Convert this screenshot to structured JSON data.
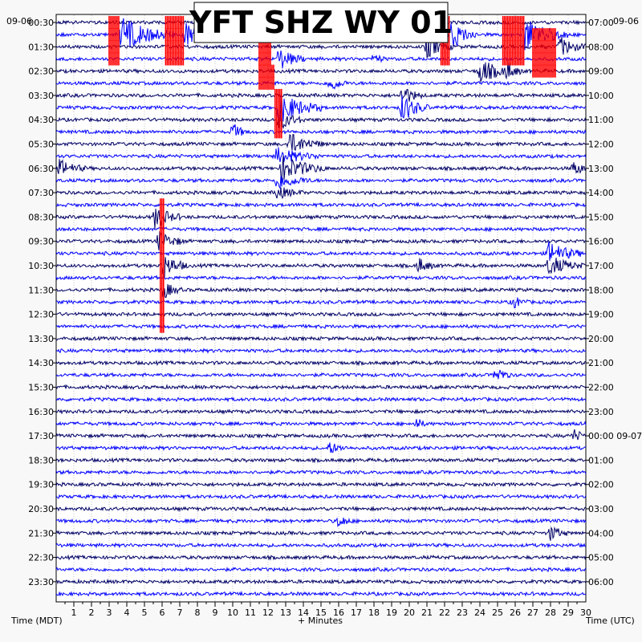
{
  "chart_data": {
    "type": "line",
    "title": "YFT SHZ WY 01",
    "left_date": "09-06",
    "right_date": "09-06",
    "left_axis_label": "Time (MDT)",
    "right_axis_label": "Time (UTC)",
    "xlabel": "+ Minutes",
    "x_ticks": [
      1,
      2,
      3,
      4,
      5,
      6,
      7,
      8,
      9,
      10,
      11,
      12,
      13,
      14,
      15,
      16,
      17,
      18,
      19,
      20,
      21,
      22,
      23,
      24,
      25,
      26,
      27,
      28,
      29,
      30
    ],
    "xlim": [
      0,
      30
    ],
    "left_ticks": [
      "00:30",
      "01:30",
      "02:30",
      "03:30",
      "04:30",
      "05:30",
      "06:30",
      "07:30",
      "08:30",
      "09:30",
      "10:30",
      "11:30",
      "12:30",
      "13:30",
      "14:30",
      "15:30",
      "16:30",
      "17:30",
      "18:30",
      "19:30",
      "20:30",
      "21:30",
      "22:30",
      "23:30"
    ],
    "right_ticks": [
      "07:00",
      "08:00",
      "09:00",
      "10:00",
      "11:00",
      "12:00",
      "13:00",
      "14:00",
      "15:00",
      "16:00",
      "17:00",
      "18:00",
      "19:00",
      "20:00",
      "21:00",
      "22:00",
      "23:00",
      "00:00 09-07",
      "01:00",
      "02:00",
      "03:00",
      "04:00",
      "05:00",
      "06:00"
    ],
    "trace_colors": [
      "#000066",
      "#0000ff"
    ],
    "clip_color": "#ff0000",
    "trace_count": 48,
    "traces_per_hour": 2,
    "clipped_segments": [
      {
        "trace": 0,
        "x": [
          3.0,
          3.6
        ]
      },
      {
        "trace": 1,
        "x": [
          3.0,
          3.6
        ]
      },
      {
        "trace": 2,
        "x": [
          3.0,
          3.6
        ]
      },
      {
        "trace": 3,
        "x": [
          3.0,
          3.6
        ]
      },
      {
        "trace": 0,
        "x": [
          6.2,
          7.2
        ]
      },
      {
        "trace": 1,
        "x": [
          6.2,
          7.2
        ]
      },
      {
        "trace": 2,
        "x": [
          6.2,
          7.2
        ]
      },
      {
        "trace": 3,
        "x": [
          6.2,
          7.2
        ]
      },
      {
        "trace": 2,
        "x": [
          11.5,
          12.2
        ]
      },
      {
        "trace": 3,
        "x": [
          11.5,
          12.2
        ]
      },
      {
        "trace": 4,
        "x": [
          11.5,
          12.4
        ]
      },
      {
        "trace": 5,
        "x": [
          11.5,
          12.4
        ]
      },
      {
        "trace": 6,
        "x": [
          12.4,
          12.8
        ]
      },
      {
        "trace": 7,
        "x": [
          12.4,
          12.8
        ]
      },
      {
        "trace": 8,
        "x": [
          12.4,
          12.8
        ]
      },
      {
        "trace": 9,
        "x": [
          12.4,
          12.8
        ]
      },
      {
        "trace": 0,
        "x": [
          21.8,
          22.3
        ]
      },
      {
        "trace": 1,
        "x": [
          21.8,
          22.3
        ]
      },
      {
        "trace": 2,
        "x": [
          21.8,
          22.3
        ]
      },
      {
        "trace": 3,
        "x": [
          21.8,
          22.3
        ]
      },
      {
        "trace": 0,
        "x": [
          25.3,
          26.5
        ]
      },
      {
        "trace": 1,
        "x": [
          25.3,
          26.5
        ]
      },
      {
        "trace": 2,
        "x": [
          25.3,
          26.5
        ]
      },
      {
        "trace": 3,
        "x": [
          25.3,
          26.5
        ]
      },
      {
        "trace": 1,
        "x": [
          27.0,
          28.3
        ]
      },
      {
        "trace": 2,
        "x": [
          27.0,
          28.3
        ]
      },
      {
        "trace": 3,
        "x": [
          27.0,
          28.3
        ]
      },
      {
        "trace": 4,
        "x": [
          27.0,
          28.3
        ]
      },
      {
        "trace": 15,
        "x": [
          5.9,
          6.1
        ]
      },
      {
        "trace": 16,
        "x": [
          5.9,
          6.1
        ]
      },
      {
        "trace": 17,
        "x": [
          5.9,
          6.1
        ]
      },
      {
        "trace": 18,
        "x": [
          5.9,
          6.1
        ]
      },
      {
        "trace": 19,
        "x": [
          5.9,
          6.1
        ]
      },
      {
        "trace": 20,
        "x": [
          5.9,
          6.1
        ]
      },
      {
        "trace": 21,
        "x": [
          5.9,
          6.1
        ]
      },
      {
        "trace": 22,
        "x": [
          5.9,
          6.1
        ]
      },
      {
        "trace": 23,
        "x": [
          5.9,
          6.1
        ]
      },
      {
        "trace": 24,
        "x": [
          5.9,
          6.1
        ]
      },
      {
        "trace": 25,
        "x": [
          5.9,
          6.1
        ]
      }
    ],
    "events": [
      {
        "trace": 1,
        "x": 3.7,
        "amp": 2.4,
        "dur": 3.0
      },
      {
        "trace": 1,
        "x": 7.3,
        "amp": 1.8,
        "dur": 2.5
      },
      {
        "trace": 1,
        "x": 16.5,
        "amp": 1.2,
        "dur": 0.8
      },
      {
        "trace": 1,
        "x": 22.4,
        "amp": 2.0,
        "dur": 1.5
      },
      {
        "trace": 1,
        "x": 26.5,
        "amp": 2.5,
        "dur": 2.5
      },
      {
        "trace": 2,
        "x": 21.0,
        "amp": 1.5,
        "dur": 1.5
      },
      {
        "trace": 2,
        "x": 28.5,
        "amp": 1.4,
        "dur": 1.5
      },
      {
        "trace": 3,
        "x": 12.6,
        "amp": 1.6,
        "dur": 1.5
      },
      {
        "trace": 3,
        "x": 18.0,
        "amp": 0.9,
        "dur": 0.6
      },
      {
        "trace": 4,
        "x": 24.0,
        "amp": 1.8,
        "dur": 1.8
      },
      {
        "trace": 4,
        "x": 25.5,
        "amp": 1.2,
        "dur": 1.0
      },
      {
        "trace": 5,
        "x": 15.5,
        "amp": 1.2,
        "dur": 1.0
      },
      {
        "trace": 6,
        "x": 19.6,
        "amp": 1.4,
        "dur": 1.2
      },
      {
        "trace": 7,
        "x": 12.6,
        "amp": 2.2,
        "dur": 2.5
      },
      {
        "trace": 7,
        "x": 19.6,
        "amp": 2.0,
        "dur": 1.5
      },
      {
        "trace": 8,
        "x": 12.6,
        "amp": 1.4,
        "dur": 1.5
      },
      {
        "trace": 9,
        "x": 10.0,
        "amp": 1.3,
        "dur": 0.8
      },
      {
        "trace": 10,
        "x": 13.2,
        "amp": 1.5,
        "dur": 2.0
      },
      {
        "trace": 11,
        "x": 12.5,
        "amp": 1.2,
        "dur": 2.5
      },
      {
        "trace": 12,
        "x": 0.2,
        "amp": 1.2,
        "dur": 1.5
      },
      {
        "trace": 12,
        "x": 12.8,
        "amp": 1.8,
        "dur": 2.5
      },
      {
        "trace": 12,
        "x": 29.3,
        "amp": 1.1,
        "dur": 0.8
      },
      {
        "trace": 13,
        "x": 12.5,
        "amp": 1.2,
        "dur": 2.0
      },
      {
        "trace": 14,
        "x": 12.5,
        "amp": 0.9,
        "dur": 1.5
      },
      {
        "trace": 16,
        "x": 5.6,
        "amp": 1.6,
        "dur": 1.5
      },
      {
        "trace": 18,
        "x": 5.8,
        "amp": 1.4,
        "dur": 1.5
      },
      {
        "trace": 19,
        "x": 27.9,
        "amp": 1.6,
        "dur": 2.0
      },
      {
        "trace": 20,
        "x": 6.0,
        "amp": 1.8,
        "dur": 1.5
      },
      {
        "trace": 20,
        "x": 20.5,
        "amp": 1.1,
        "dur": 1.0
      },
      {
        "trace": 20,
        "x": 27.9,
        "amp": 1.4,
        "dur": 2.0
      },
      {
        "trace": 22,
        "x": 6.1,
        "amp": 1.2,
        "dur": 1.0
      },
      {
        "trace": 23,
        "x": 25.9,
        "amp": 0.9,
        "dur": 0.8
      },
      {
        "trace": 29,
        "x": 24.9,
        "amp": 1.3,
        "dur": 0.8
      },
      {
        "trace": 33,
        "x": 20.4,
        "amp": 0.8,
        "dur": 0.6
      },
      {
        "trace": 34,
        "x": 29.3,
        "amp": 0.9,
        "dur": 0.8
      },
      {
        "trace": 35,
        "x": 15.5,
        "amp": 0.8,
        "dur": 1.0
      },
      {
        "trace": 41,
        "x": 16.0,
        "amp": 0.9,
        "dur": 0.8
      },
      {
        "trace": 42,
        "x": 28.0,
        "amp": 1.1,
        "dur": 1.0
      }
    ]
  }
}
